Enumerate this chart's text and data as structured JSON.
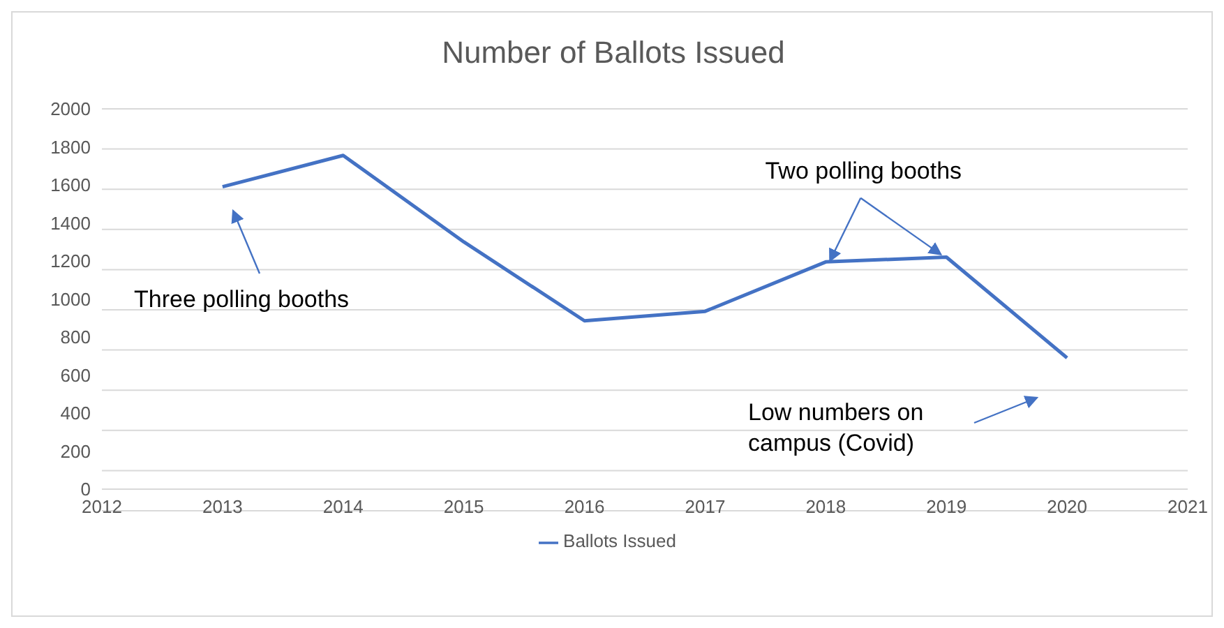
{
  "chart_data": {
    "type": "line",
    "title": "Number of Ballots Issued",
    "x": [
      2013,
      2014,
      2015,
      2016,
      2017,
      2018,
      2019,
      2020
    ],
    "series": [
      {
        "name": "Ballots Issued",
        "color": "#4472c4",
        "values": [
          1590,
          1755,
          1300,
          885,
          935,
          1195,
          1220,
          690
        ]
      }
    ],
    "xlim": [
      2012,
      2021
    ],
    "xticks": [
      2012,
      2013,
      2014,
      2015,
      2016,
      2017,
      2018,
      2019,
      2020,
      2021
    ],
    "ylim": [
      0,
      2000
    ],
    "yticks": [
      0,
      200,
      400,
      600,
      800,
      1000,
      1200,
      1400,
      1600,
      1800,
      2000
    ],
    "grid": "y",
    "legend": "bottom",
    "marker": "none",
    "line_style": "solid",
    "annotations": [
      "Three polling booths",
      {
        "text": "Two polling booths",
        "x": 2018,
        "y": 1195
      },
      "Low numbers on campus (Covid)"
    ]
  }
}
